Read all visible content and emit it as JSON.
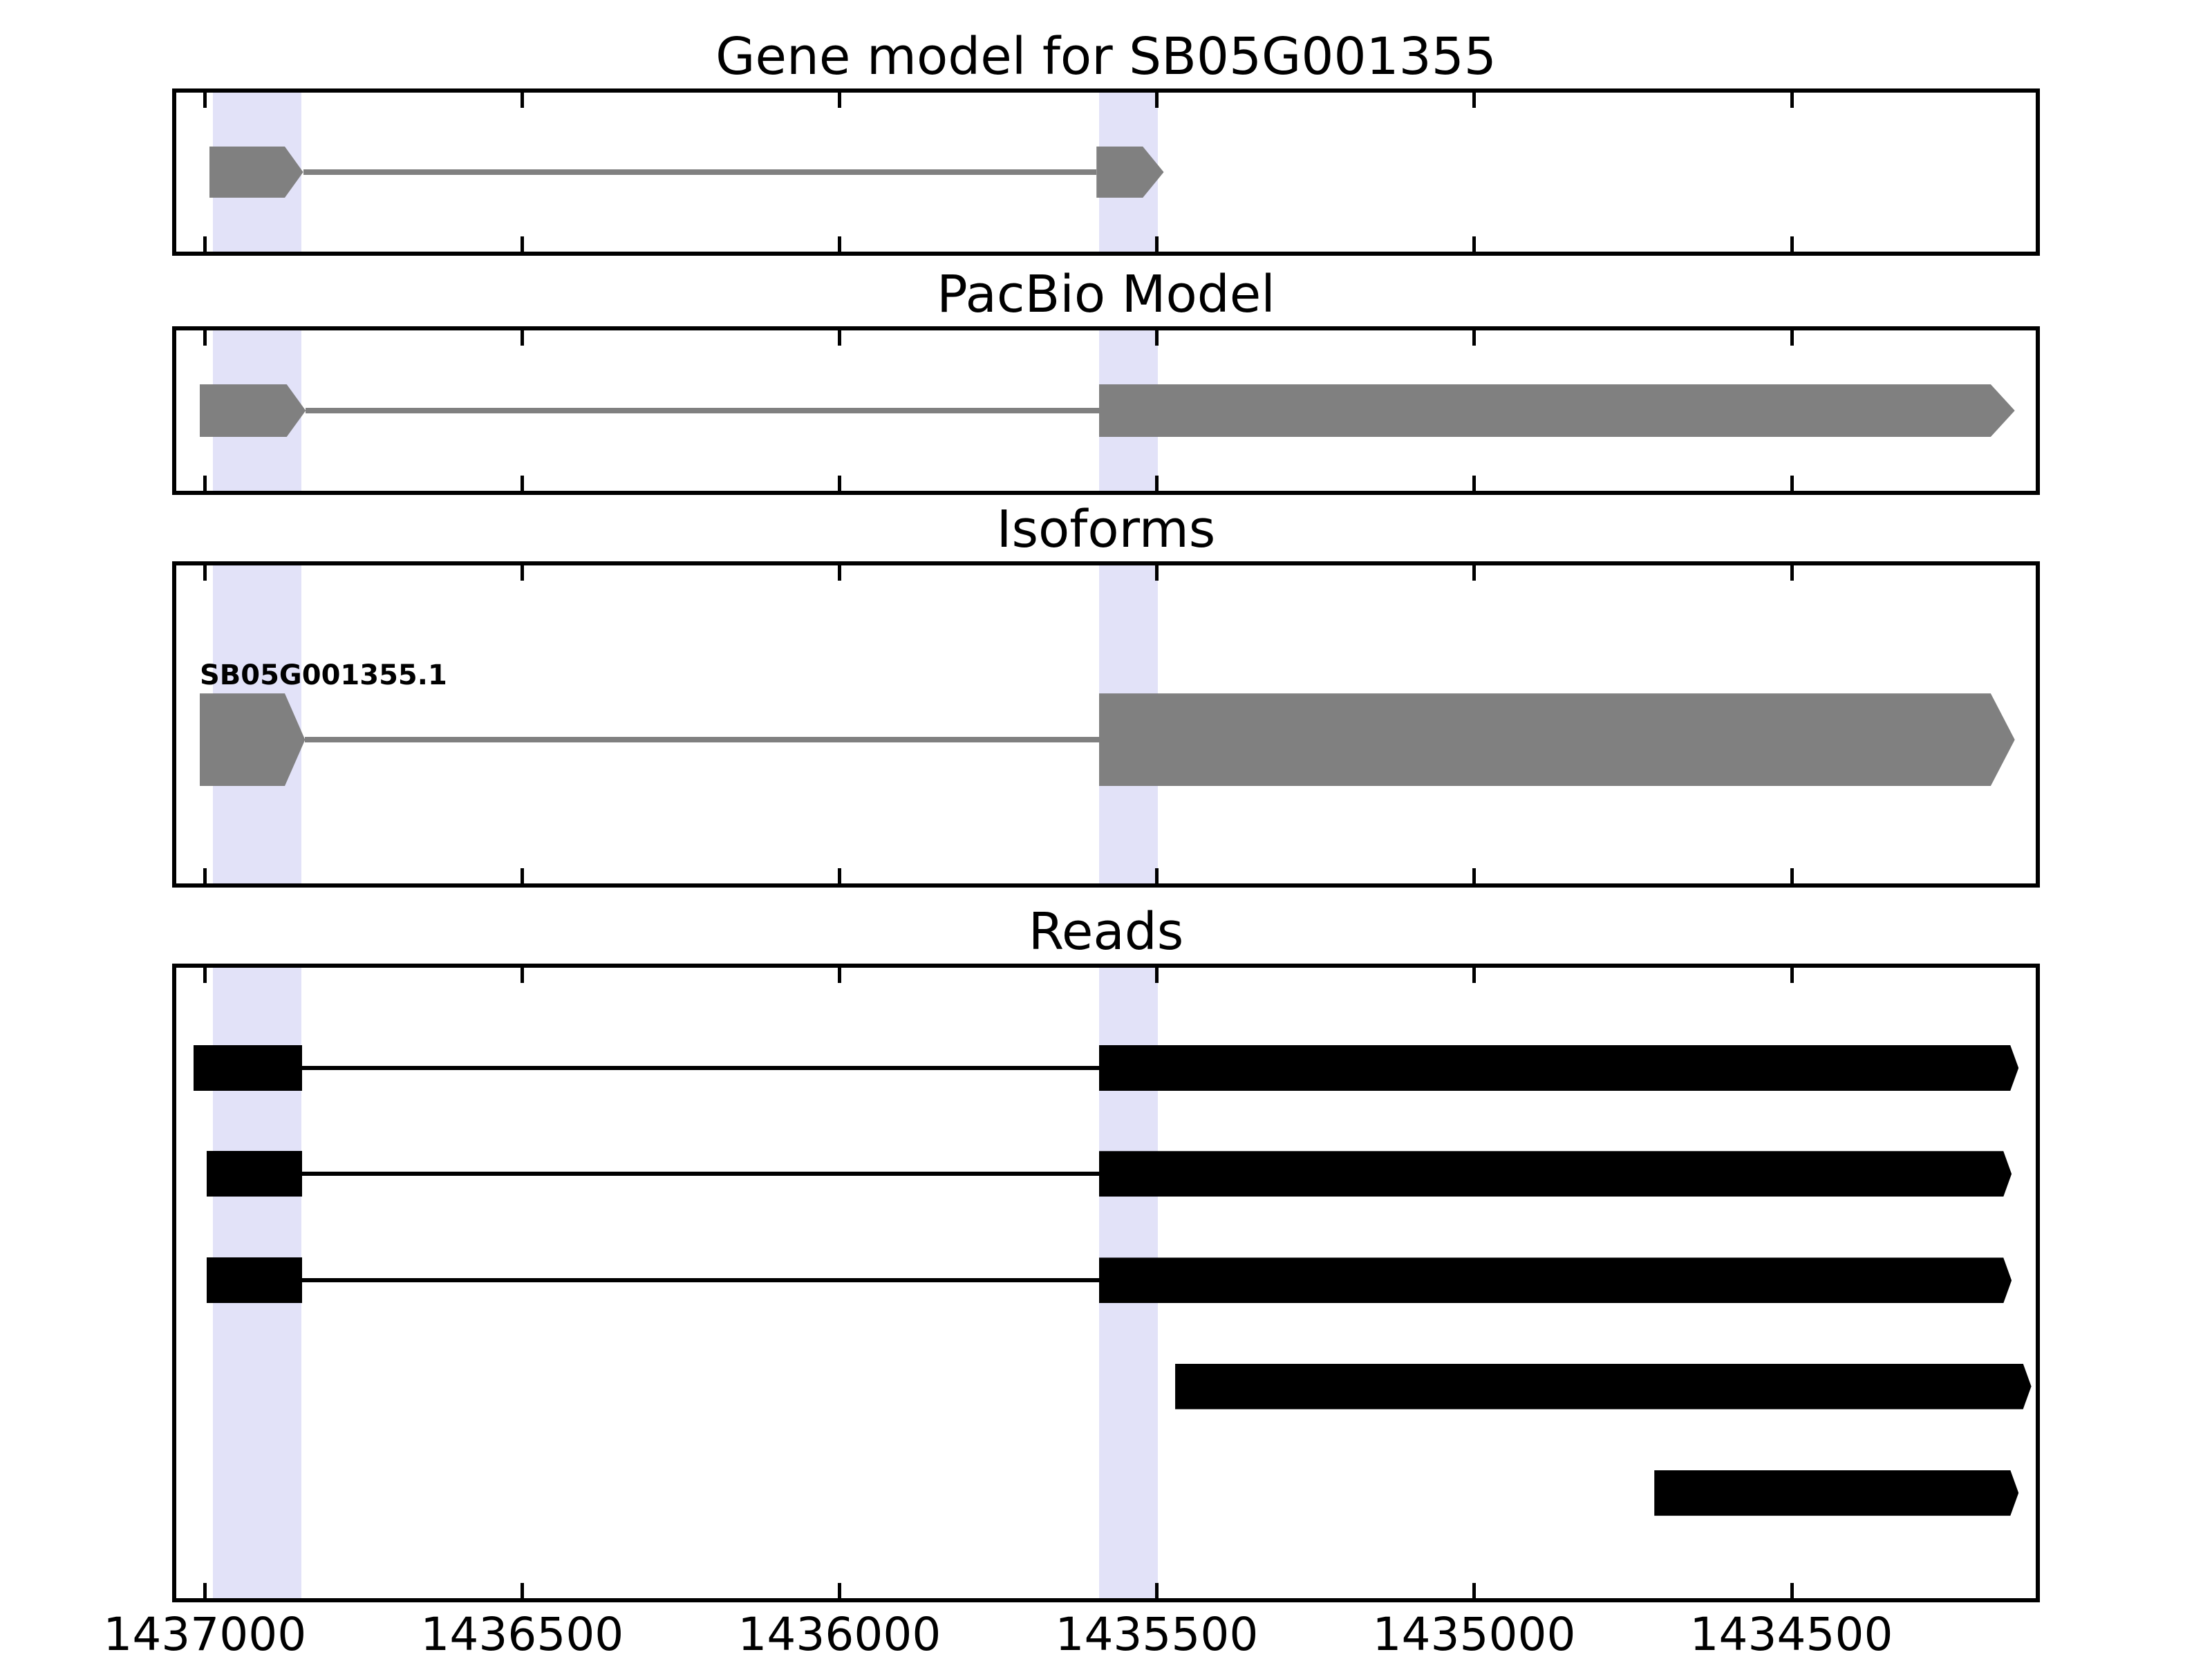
{
  "figure_title": "Gene model for SB05G001355",
  "chart_data": {
    "type": "genome-tracks",
    "title": "Gene model for SB05G001355",
    "x_axis": {
      "label": "",
      "orientation": "reversed (genomic coordinates decrease from left to right)",
      "left_bp": 1437045,
      "right_bp": 1434115,
      "ticks": [
        1437000,
        1436500,
        1436000,
        1435500,
        1435000,
        1434500
      ],
      "tick_labels": [
        "1437000",
        "1436500",
        "1436000",
        "1435500",
        "1435000",
        "1434500"
      ],
      "grid": false
    },
    "highlight_color": "#e2e2f8",
    "highlighted_regions": [
      {
        "start": 1436987,
        "end": 1436848
      },
      {
        "start": 1435591,
        "end": 1435498
      }
    ],
    "tracks": [
      {
        "name": "Gene model for SB05G001355",
        "color": "#808080",
        "intron_color": "#808080",
        "rows": [
          {
            "features": [
              {
                "kind": "exon",
                "start": 1436993,
                "end": 1436874,
                "tip": 1436845
              },
              {
                "kind": "intron",
                "start": 1436845,
                "end": 1435595
              },
              {
                "kind": "exon",
                "start": 1435595,
                "end": 1435522,
                "tip": 1435489
              }
            ]
          }
        ]
      },
      {
        "name": "PacBio Model",
        "color": "#808080",
        "intron_color": "#808080",
        "rows": [
          {
            "features": [
              {
                "kind": "exon",
                "start": 1437008,
                "end": 1436871,
                "tip": 1436841
              },
              {
                "kind": "intron",
                "start": 1436841,
                "end": 1435591
              },
              {
                "kind": "exon",
                "start": 1435591,
                "end": 1434186,
                "tip": 1434148
              }
            ]
          }
        ]
      },
      {
        "name": "Isoforms",
        "color": "#808080",
        "intron_color": "#808080",
        "rows": [
          {
            "label": "SB05G001355.1",
            "features": [
              {
                "kind": "exon",
                "start": 1437008,
                "end": 1436874,
                "tip": 1436842
              },
              {
                "kind": "intron",
                "start": 1436842,
                "end": 1435591
              },
              {
                "kind": "exon",
                "start": 1435591,
                "end": 1434186,
                "tip": 1434148
              }
            ]
          }
        ]
      },
      {
        "name": "Reads",
        "color": "#000000",
        "intron_color": "#000000",
        "rows": [
          {
            "features": [
              {
                "kind": "exon",
                "start": 1437018,
                "end": 1436847
              },
              {
                "kind": "intron",
                "start": 1436847,
                "end": 1435591
              },
              {
                "kind": "exon",
                "start": 1435591,
                "end": 1434155,
                "tip": 1434142
              }
            ]
          },
          {
            "features": [
              {
                "kind": "exon",
                "start": 1436997,
                "end": 1436847
              },
              {
                "kind": "intron",
                "start": 1436847,
                "end": 1435591
              },
              {
                "kind": "exon",
                "start": 1435591,
                "end": 1434166,
                "tip": 1434153
              }
            ]
          },
          {
            "features": [
              {
                "kind": "exon",
                "start": 1436997,
                "end": 1436847
              },
              {
                "kind": "intron",
                "start": 1436847,
                "end": 1435591
              },
              {
                "kind": "exon",
                "start": 1435591,
                "end": 1434166,
                "tip": 1434153
              }
            ]
          },
          {
            "features": [
              {
                "kind": "exon",
                "start": 1435471,
                "end": 1434135,
                "tip": 1434122
              }
            ]
          },
          {
            "features": [
              {
                "kind": "exon",
                "start": 1434716,
                "end": 1434155,
                "tip": 1434142
              }
            ]
          }
        ]
      }
    ]
  }
}
